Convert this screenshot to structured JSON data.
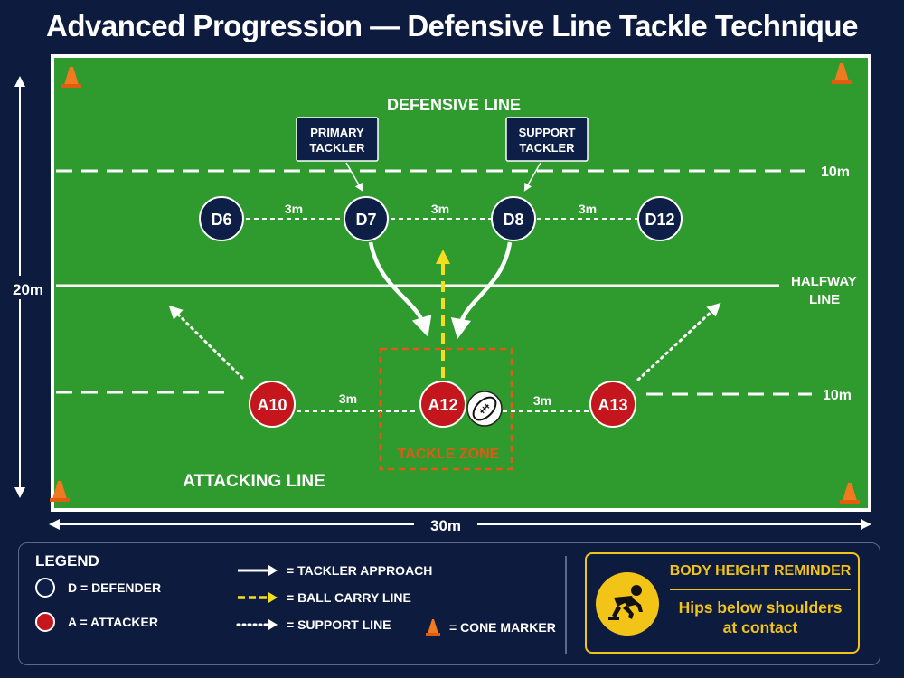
{
  "title": "Advanced Progression — Defensive Line Tackle Technique",
  "field": {
    "defensive_line_label": "DEFENSIVE LINE",
    "attacking_line_label": "ATTACKING LINE",
    "halfway_label_1": "HALFWAY",
    "halfway_label_2": "LINE",
    "top_line_distance": "10m",
    "bottom_line_distance": "10m",
    "width_label": "30m",
    "height_label": "20m",
    "tackle_zone_label": "TACKLE ZONE",
    "colors": {
      "grass": "#2f9a2d",
      "defender": "#0e1f47",
      "attacker": "#c4161c",
      "ball_carry": "#f5dd1f",
      "tackle_zone": "#e05a17",
      "cone": "#f07a1f"
    }
  },
  "callouts": {
    "primary": [
      "PRIMARY",
      "TACKLER"
    ],
    "support": [
      "SUPPORT",
      "TACKLER"
    ]
  },
  "defenders": [
    "D6",
    "D7",
    "D8",
    "D12"
  ],
  "attackers": [
    "A10",
    "A12",
    "A13"
  ],
  "spacing": {
    "def_1": "3m",
    "def_2": "3m",
    "def_3": "3m",
    "att_1": "3m",
    "att_2": "3m"
  },
  "legend": {
    "title": "LEGEND",
    "defender": "D = DEFENDER",
    "attacker": "A = ATTACKER",
    "tackler_approach": "= TACKLER APPROACH",
    "ball_carry": "= BALL CARRY LINE",
    "support": "= SUPPORT LINE",
    "cone": "= CONE MARKER"
  },
  "reminder": {
    "title": "BODY HEIGHT REMINDER",
    "line1": "Hips below shoulders",
    "line2": "at contact",
    "icon": "crouching-player-icon"
  }
}
